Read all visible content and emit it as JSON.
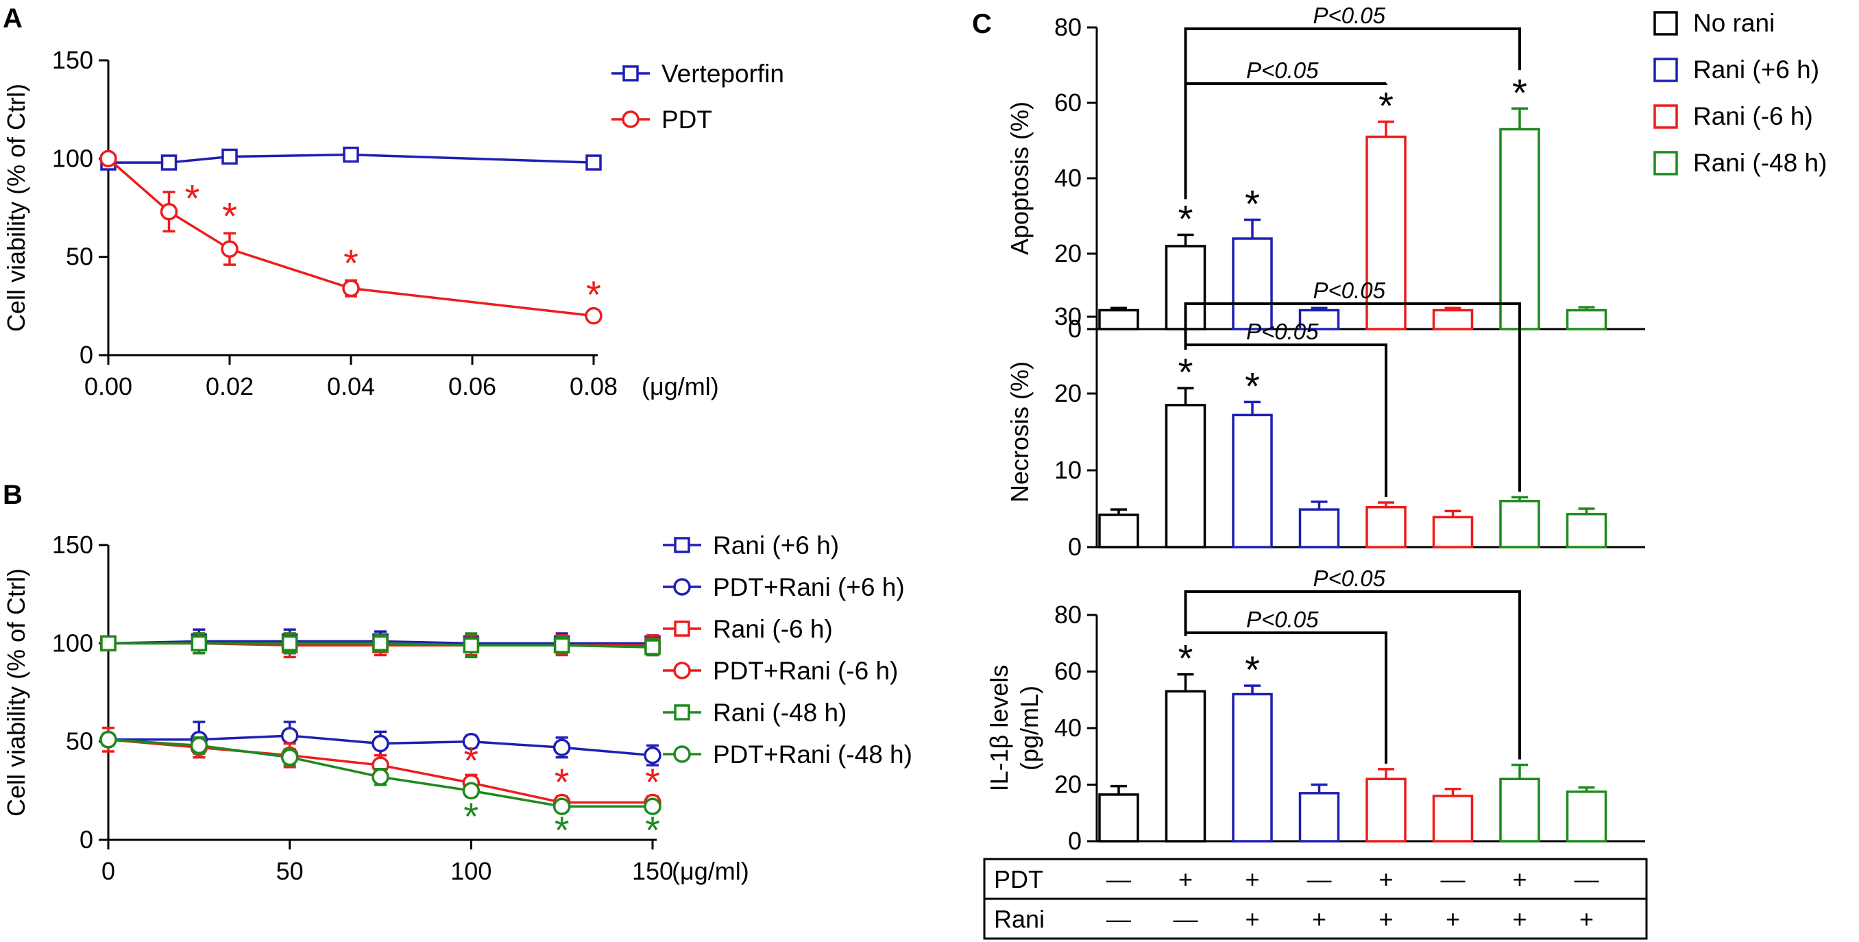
{
  "colors": {
    "black": "#000000",
    "blue": "#1f1fb4",
    "red": "#ee1c1c",
    "green": "#1e8a1e"
  },
  "panels": {
    "A": "A",
    "B": "B",
    "C": "C"
  },
  "chart_data": [
    {
      "id": "A",
      "type": "line",
      "ylabel": "Cell viability (% of Ctrl)",
      "xunit": "(μg/ml)",
      "ylim": [
        0,
        150
      ],
      "yticks": [
        0,
        50,
        100,
        150
      ],
      "xlim": [
        0,
        0.08
      ],
      "xticks": [
        "0.00",
        "0.02",
        "0.04",
        "0.06",
        "0.08"
      ],
      "series": [
        {
          "name": "Verteporfin",
          "marker": "square",
          "color": "#1f1fb4",
          "x": [
            0,
            0.01,
            0.02,
            0.04,
            0.08
          ],
          "y": [
            98,
            98,
            101,
            102,
            98
          ],
          "err": [
            2,
            2,
            2,
            2,
            2
          ],
          "sig": []
        },
        {
          "name": "PDT",
          "marker": "circle",
          "color": "#ee1c1c",
          "x": [
            0,
            0.01,
            0.02,
            0.04,
            0.08
          ],
          "y": [
            100,
            73,
            54,
            34,
            20
          ],
          "err": [
            2,
            10,
            8,
            4,
            2
          ],
          "sig": [
            0.01,
            0.02,
            0.04,
            0.08
          ]
        }
      ]
    },
    {
      "id": "B",
      "type": "line",
      "ylabel": "Cell viability (% of Ctrl)",
      "xunit": "(μg/ml)",
      "ylim": [
        0,
        150
      ],
      "yticks": [
        0,
        50,
        100,
        150
      ],
      "xlim": [
        0,
        150
      ],
      "xticks": [
        "0",
        "50",
        "100",
        "150"
      ],
      "series": [
        {
          "name": "Rani (+6 h)",
          "marker": "square",
          "color": "#1f1fb4",
          "x": [
            0,
            25,
            50,
            75,
            100,
            125,
            150
          ],
          "y": [
            100,
            101,
            101,
            101,
            100,
            100,
            100
          ],
          "err": [
            2,
            6,
            6,
            5,
            4,
            5,
            4
          ],
          "sig": []
        },
        {
          "name": "PDT+Rani (+6 h)",
          "marker": "circle",
          "color": "#1f1fb4",
          "x": [
            0,
            25,
            50,
            75,
            100,
            125,
            150
          ],
          "y": [
            51,
            51,
            53,
            49,
            50,
            47,
            43
          ],
          "err": [
            3,
            9,
            7,
            6,
            3,
            5,
            5
          ],
          "sig": []
        },
        {
          "name": "Rani (-6 h)",
          "marker": "square",
          "color": "#ee1c1c",
          "x": [
            0,
            25,
            50,
            75,
            100,
            125,
            150
          ],
          "y": [
            100,
            100,
            99,
            99,
            99,
            99,
            99
          ],
          "err": [
            2,
            5,
            6,
            5,
            5,
            5,
            5
          ],
          "sig": []
        },
        {
          "name": "PDT+Rani (-6 h)",
          "marker": "circle",
          "color": "#ee1c1c",
          "x": [
            0,
            25,
            50,
            75,
            100,
            125,
            150
          ],
          "y": [
            51,
            47,
            43,
            38,
            29,
            19,
            19
          ],
          "err": [
            6,
            5,
            6,
            5,
            4,
            3,
            3
          ],
          "sig": [
            100,
            125,
            150
          ]
        },
        {
          "name": "Rani (-48 h)",
          "marker": "square",
          "color": "#1e8a1e",
          "x": [
            0,
            25,
            50,
            75,
            100,
            125,
            150
          ],
          "y": [
            100,
            100,
            100,
            100,
            99,
            99,
            98
          ],
          "err": [
            2,
            5,
            5,
            4,
            6,
            4,
            4
          ],
          "sig": []
        },
        {
          "name": "PDT+Rani (-48 h)",
          "marker": "circle",
          "color": "#1e8a1e",
          "x": [
            0,
            25,
            50,
            75,
            100,
            125,
            150
          ],
          "y": [
            51,
            48,
            42,
            32,
            25,
            17,
            17
          ],
          "err": [
            3,
            4,
            4,
            4,
            3,
            2,
            2
          ],
          "sig": [
            100,
            125,
            150
          ]
        }
      ]
    },
    {
      "id": "C1",
      "type": "bar",
      "ylabel": "Apoptosis (%)",
      "ylim": [
        0,
        80
      ],
      "yticks": [
        0,
        20,
        40,
        60,
        80
      ],
      "groups": [
        "No rani",
        "No rani",
        "Rani (+6 h)",
        "Rani (+6 h)",
        "Rani (-6 h)",
        "Rani (-6 h)",
        "Rani (-48 h)",
        "Rani (-48 h)"
      ],
      "values": [
        5,
        22,
        24,
        5,
        51,
        5,
        53,
        5
      ],
      "err": [
        0.6,
        3,
        5,
        0.6,
        4,
        0.6,
        5.5,
        0.8
      ],
      "sig": [
        1,
        2,
        4,
        6
      ],
      "comparisons": [
        {
          "label": "P<0.05",
          "from": 1,
          "to": 4
        },
        {
          "label": "P<0.05",
          "from": 1,
          "to": 6
        }
      ]
    },
    {
      "id": "C2",
      "type": "bar",
      "ylabel": "Necrosis (%)",
      "ylim": [
        0,
        30
      ],
      "yticks": [
        0,
        10,
        20,
        30
      ],
      "groups": [
        "No rani",
        "No rani",
        "Rani (+6 h)",
        "Rani (+6 h)",
        "Rani (-6 h)",
        "Rani (-6 h)",
        "Rani (-48 h)",
        "Rani (-48 h)"
      ],
      "values": [
        4.2,
        18.5,
        17.2,
        4.9,
        5.2,
        3.9,
        6.0,
        4.3
      ],
      "err": [
        0.7,
        2.2,
        1.7,
        1.0,
        0.6,
        0.8,
        0.5,
        0.7
      ],
      "sig": [
        1,
        2
      ],
      "comparisons": [
        {
          "label": "P<0.05",
          "from": 1,
          "to": 4
        },
        {
          "label": "P<0.05",
          "from": 1,
          "to": 6
        }
      ]
    },
    {
      "id": "C3",
      "type": "bar",
      "ylabel": "IL-1β levels (pg/mL)",
      "ylabel_lines": [
        "IL-1β levels",
        "(pg/mL)"
      ],
      "ylim": [
        0,
        80
      ],
      "yticks": [
        0,
        20,
        40,
        60,
        80
      ],
      "groups": [
        "No rani",
        "No rani",
        "Rani (+6 h)",
        "Rani (+6 h)",
        "Rani (-6 h)",
        "Rani (-6 h)",
        "Rani (-48 h)",
        "Rani (-48 h)"
      ],
      "values": [
        16.5,
        53,
        52,
        17,
        22,
        16,
        22,
        17.5
      ],
      "err": [
        3,
        6,
        3,
        3,
        3.5,
        2.5,
        5,
        1.5
      ],
      "sig": [
        1,
        2
      ],
      "comparisons": [
        {
          "label": "P<0.05",
          "from": 1,
          "to": 4
        },
        {
          "label": "P<0.05",
          "from": 1,
          "to": 6
        }
      ]
    }
  ],
  "legend_c": [
    {
      "label": "No rani",
      "color": "#000000"
    },
    {
      "label": "Rani (+6 h)",
      "color": "#1f1fb4"
    },
    {
      "label": "Rani (-6 h)",
      "color": "#ee1c1c"
    },
    {
      "label": "Rani (-48 h)",
      "color": "#1e8a1e"
    }
  ],
  "treatment_table": {
    "rows": [
      {
        "label": "PDT",
        "cells": [
          "—",
          "+",
          "+",
          "—",
          "+",
          "—",
          "+",
          "—"
        ]
      },
      {
        "label": "Rani",
        "cells": [
          "—",
          "—",
          "+",
          "+",
          "+",
          "+",
          "+",
          "+"
        ]
      }
    ]
  },
  "sig_symbol": "*"
}
